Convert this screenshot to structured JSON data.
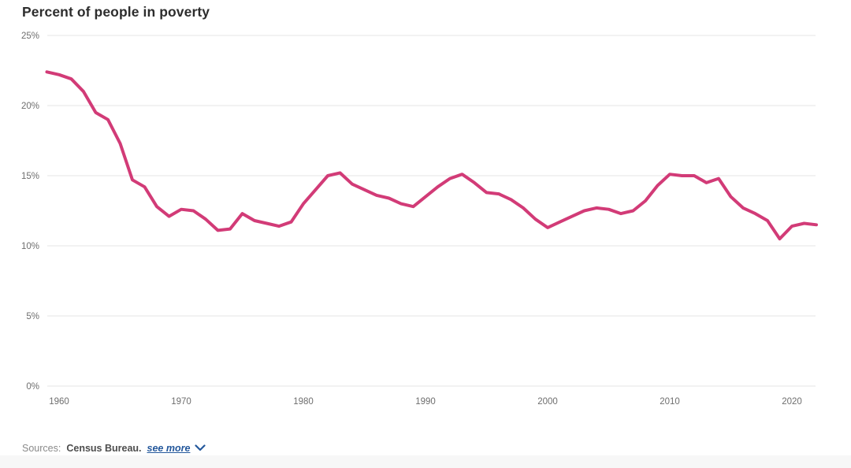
{
  "page": {
    "title": "Percent of people in poverty"
  },
  "sources": {
    "label": "Sources:",
    "source_name": "Census Bureau.",
    "see_more_label": "see more",
    "see_more_icon": "chevron-down-icon"
  },
  "colors": {
    "line": "#d23b77",
    "grid": "#e4e4e4",
    "axis_text": "#6e6e6e",
    "title_text": "#2d2d2d",
    "link_blue": "#24589c",
    "sources_label_gray": "#8a8a8a",
    "source_name_gray": "#4d4d4d",
    "footer_band_gray": "#f7f7f7"
  },
  "chart_data": {
    "type": "line",
    "title": "Percent of people in poverty",
    "xlabel": "",
    "ylabel": "",
    "x": [
      1959,
      1960,
      1961,
      1962,
      1963,
      1964,
      1965,
      1966,
      1967,
      1968,
      1969,
      1970,
      1971,
      1972,
      1973,
      1974,
      1975,
      1976,
      1977,
      1978,
      1979,
      1980,
      1981,
      1982,
      1983,
      1984,
      1985,
      1986,
      1987,
      1988,
      1989,
      1990,
      1991,
      1992,
      1993,
      1994,
      1995,
      1996,
      1997,
      1998,
      1999,
      2000,
      2001,
      2002,
      2003,
      2004,
      2005,
      2006,
      2007,
      2008,
      2009,
      2010,
      2011,
      2012,
      2013,
      2014,
      2015,
      2016,
      2017,
      2018,
      2019,
      2020,
      2021,
      2022
    ],
    "series": [
      {
        "name": "Percent of people in poverty",
        "values": [
          22.4,
          22.2,
          21.9,
          21.0,
          19.5,
          19.0,
          17.3,
          14.7,
          14.2,
          12.8,
          12.1,
          12.6,
          12.5,
          11.9,
          11.1,
          11.2,
          12.3,
          11.8,
          11.6,
          11.4,
          11.7,
          13.0,
          14.0,
          15.0,
          15.2,
          14.4,
          14.0,
          13.6,
          13.4,
          13.0,
          12.8,
          13.5,
          14.2,
          14.8,
          15.1,
          14.5,
          13.8,
          13.7,
          13.3,
          12.7,
          11.9,
          11.3,
          11.7,
          12.1,
          12.5,
          12.7,
          12.6,
          12.3,
          12.5,
          13.2,
          14.3,
          15.1,
          15.0,
          15.0,
          14.5,
          14.8,
          13.5,
          12.7,
          12.3,
          11.8,
          10.5,
          11.4,
          11.6,
          11.5
        ]
      }
    ],
    "x_ticks": [
      1960,
      1970,
      1980,
      1990,
      2000,
      2010,
      2020
    ],
    "y_ticks": [
      0,
      5,
      10,
      15,
      20,
      25
    ],
    "y_tick_suffix": "%",
    "xlim": [
      1959,
      2022
    ],
    "ylim": [
      0,
      25
    ],
    "grid": "horizontal",
    "legend": "none"
  }
}
